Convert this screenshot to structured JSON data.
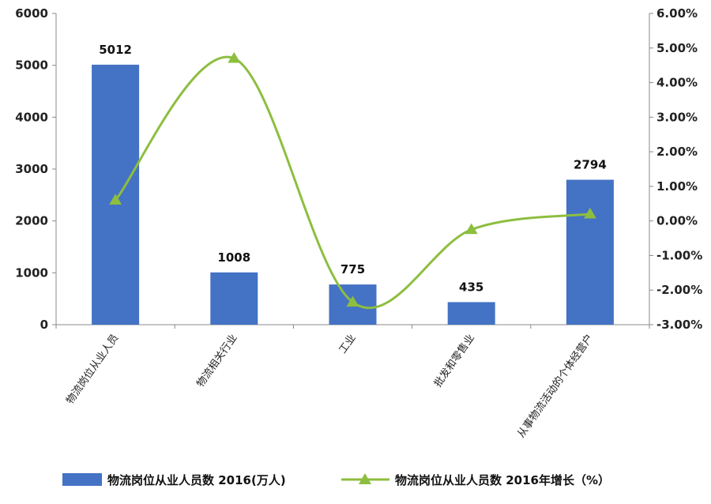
{
  "chart_data": {
    "type": "bar",
    "categories": [
      "物流岗位从业人员",
      "物流相关行业",
      "工业",
      "批发和零售业",
      "从事物流活动的个体经营户"
    ],
    "series": [
      {
        "name": "物流岗位从业人员数 2016(万人)",
        "type": "bar",
        "axis": "left",
        "color": "#4472C4",
        "values": [
          5012,
          1008,
          775,
          435,
          2794
        ],
        "labels": [
          "5012",
          "1008",
          "775",
          "435",
          "2794"
        ]
      },
      {
        "name": "物流岗位从业人员数 2016年增长（%）",
        "type": "line",
        "axis": "right",
        "color": "#8DBE3F",
        "marker": "triangle",
        "smooth": true,
        "values": [
          0.6,
          4.7,
          -2.35,
          -0.25,
          0.2
        ]
      }
    ],
    "y_left": {
      "range": [
        0,
        6000
      ],
      "ticks": [
        "0",
        "1000",
        "2000",
        "3000",
        "4000",
        "5000",
        "6000"
      ]
    },
    "y_right": {
      "range": [
        -3,
        6
      ],
      "ticks": [
        "-3.00%",
        "-2.00%",
        "-1.00%",
        "0.00%",
        "1.00%",
        "2.00%",
        "3.00%",
        "4.00%",
        "5.00%",
        "6.00%"
      ]
    },
    "grid": false,
    "legend_position": "bottom"
  }
}
